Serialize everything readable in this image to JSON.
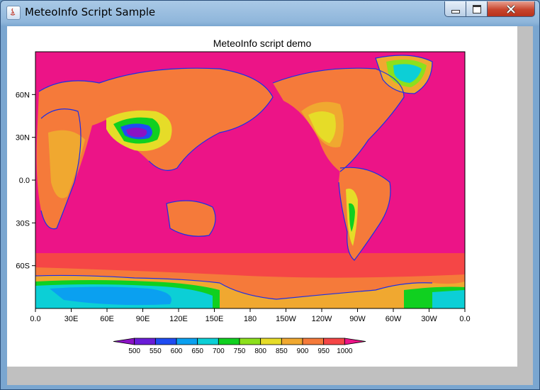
{
  "window": {
    "title": "MeteoInfo Script Sample",
    "buttons": {
      "minimize": "minimize-icon",
      "maximize": "maximize-icon",
      "close": "close-icon"
    }
  },
  "chart_data": {
    "type": "heatmap",
    "title": "MeteoInfo script demo",
    "xlabel": "",
    "ylabel": "",
    "x_tick_labels": [
      "0.0",
      "30E",
      "60E",
      "90E",
      "120E",
      "150E",
      "180",
      "150W",
      "120W",
      "90W",
      "60W",
      "30W",
      "0.0"
    ],
    "y_tick_labels": [
      "60N",
      "30N",
      "0.0",
      "30S",
      "60S"
    ],
    "x_ticks_deg": [
      0,
      30,
      60,
      90,
      120,
      150,
      180,
      210,
      240,
      270,
      300,
      330,
      360
    ],
    "y_ticks_deg": [
      60,
      30,
      0,
      -30,
      -60
    ],
    "xlim": [
      0,
      360
    ],
    "ylim": [
      -90,
      90
    ],
    "legend": {
      "placement": "bottom",
      "levels": [
        500,
        550,
        600,
        650,
        700,
        750,
        800,
        850,
        900,
        950,
        1000
      ],
      "labels": [
        "500",
        "550",
        "600",
        "650",
        "700",
        "750",
        "800",
        "850",
        "900",
        "950",
        "1000"
      ],
      "colors": [
        "#8b12c4",
        "#6a1cd8",
        "#1f4cf2",
        "#0aa0f0",
        "#0ccfd6",
        "#10d020",
        "#8ce01c",
        "#e6dc28",
        "#f0a830",
        "#f57a3a",
        "#f54646",
        "#ec1487"
      ]
    },
    "background_color": "#ec1487",
    "coastline_color": "#1a2ee8"
  }
}
